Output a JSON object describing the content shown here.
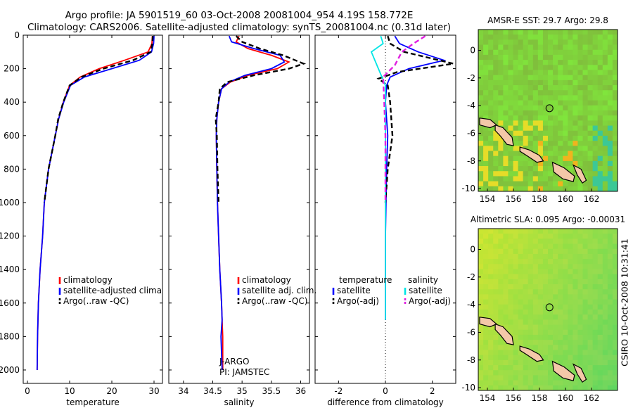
{
  "figure": {
    "title_line1": "Argo profile: JA 5901519_60 03-Oct-2008 20081004_954 4.19S 158.772E",
    "title_line2": "Climatology: CARS2006. Satellite-adjusted climatology: synTS_20081004.nc (0.31d later)",
    "side_label": "CSIRO 10-Oct-2008 10:31:41",
    "colors": {
      "climatology": "#ff0000",
      "satellite": "#0000ff",
      "argo": "#000000",
      "satellite_salinity": "#00e5e5",
      "argo_salinity": "#e020e0"
    }
  },
  "chart_data": [
    {
      "type": "line",
      "id": "temperature",
      "xlabel": "temperature",
      "xlim": [
        -1,
        32
      ],
      "ylim": [
        2080,
        0
      ],
      "xticks": [
        0,
        10,
        20,
        30
      ],
      "yticks": [
        0,
        200,
        400,
        600,
        800,
        1000,
        1200,
        1400,
        1600,
        1800,
        2000
      ],
      "legend": [
        "climatology",
        "satellite-adjusted climatology",
        "Argo(..raw -QC)"
      ],
      "series": [
        {
          "name": "climatology",
          "color": "#ff0000",
          "x": [
            29.6,
            29.5,
            28.6,
            23.0,
            17.0,
            12.5,
            10.0,
            8.5,
            7.4,
            6.6,
            5.8,
            5.0,
            4.5,
            4.0,
            3.6,
            3.0,
            2.6,
            2.4,
            2.3
          ],
          "y": [
            5,
            50,
            100,
            150,
            200,
            250,
            300,
            400,
            500,
            600,
            700,
            800,
            900,
            1000,
            1200,
            1400,
            1600,
            1800,
            2000
          ]
        },
        {
          "name": "satellite-adjusted climatology",
          "color": "#0000ff",
          "x": [
            30.0,
            29.9,
            29.4,
            26.5,
            20.0,
            13.5,
            10.2,
            8.6,
            7.4,
            6.6,
            5.8,
            5.0,
            4.5,
            4.0,
            3.6,
            3.0,
            2.6,
            2.4,
            2.3
          ],
          "y": [
            5,
            50,
            100,
            150,
            200,
            250,
            300,
            400,
            500,
            600,
            700,
            800,
            900,
            1000,
            1200,
            1400,
            1600,
            1800,
            2000
          ]
        },
        {
          "name": "Argo(..raw -QC)",
          "color": "#000000",
          "x": [
            29.7,
            29.6,
            29.2,
            25.0,
            18.0,
            12.8,
            10.0,
            8.5,
            7.3,
            6.6,
            5.8,
            5.0,
            4.5,
            4.0
          ],
          "y": [
            5,
            50,
            100,
            150,
            200,
            250,
            300,
            400,
            500,
            600,
            700,
            800,
            900,
            1000
          ]
        }
      ]
    },
    {
      "type": "line",
      "id": "salinity",
      "xlabel": "salinity",
      "xlim": [
        33.75,
        36.15
      ],
      "ylim": [
        2080,
        0
      ],
      "xticks": [
        34,
        34.5,
        35,
        35.5,
        36
      ],
      "legend": [
        "climatology",
        "satellite adj. clim.",
        "Argo(..raw -QC)"
      ],
      "annotations": [
        "J-ARGO",
        "PI: JAMSTEC"
      ],
      "series": [
        {
          "name": "climatology",
          "color": "#ff0000",
          "x": [
            34.95,
            34.9,
            35.1,
            35.5,
            35.8,
            35.6,
            35.1,
            34.8,
            34.65,
            34.6,
            34.57,
            34.56,
            34.57,
            34.58,
            34.6,
            34.62,
            34.65,
            34.66,
            34.67,
            34.67
          ],
          "y": [
            5,
            40,
            80,
            120,
            160,
            200,
            240,
            280,
            320,
            400,
            500,
            600,
            800,
            1000,
            1200,
            1400,
            1600,
            1700,
            1800,
            2000
          ]
        },
        {
          "name": "satellite adj. clim.",
          "color": "#0000ff",
          "x": [
            34.78,
            34.82,
            35.2,
            35.65,
            35.72,
            35.5,
            35.05,
            34.78,
            34.65,
            34.6,
            34.57,
            34.56,
            34.57,
            34.58,
            34.6,
            34.62,
            34.65,
            34.66,
            34.64,
            34.66
          ],
          "y": [
            5,
            40,
            80,
            120,
            160,
            200,
            240,
            280,
            320,
            400,
            500,
            600,
            800,
            1000,
            1200,
            1400,
            1600,
            1700,
            1800,
            2000
          ]
        },
        {
          "name": "Argo(..raw -QC)",
          "color": "#000000",
          "x": [
            34.9,
            35.0,
            35.3,
            35.7,
            36.05,
            35.8,
            35.2,
            34.75,
            34.62,
            34.6,
            34.55,
            34.57,
            34.58,
            34.6
          ],
          "y": [
            5,
            40,
            80,
            120,
            170,
            200,
            240,
            280,
            320,
            400,
            500,
            600,
            800,
            1000
          ]
        }
      ]
    },
    {
      "type": "line",
      "id": "difference",
      "xlabel": "difference from climatology",
      "xlim": [
        -3.0,
        3.0
      ],
      "ylim": [
        2080,
        0
      ],
      "xticks": [
        -2,
        0,
        2
      ],
      "legend_temperature_heading": "temperature",
      "legend_salinity_heading": "salinity",
      "legend": [
        "satellite",
        "Argo(-adj)",
        "satellite",
        "Argo(-adj)"
      ],
      "series": [
        {
          "name": "satellite",
          "color": "#0000ff",
          "x": [
            0.4,
            0.6,
            1.4,
            2.5,
            1.0,
            0.2,
            0.05,
            0.0,
            0.1,
            0.05,
            0.0,
            0.0,
            0.0
          ],
          "y": [
            5,
            50,
            100,
            150,
            200,
            250,
            300,
            400,
            600,
            800,
            1200,
            1600,
            1700
          ]
        },
        {
          "name": "Argo(-adj)",
          "color": "#000000",
          "x": [
            0.1,
            0.2,
            0.8,
            2.9,
            0.5,
            -0.3,
            0.1,
            0.2,
            0.3,
            0.1,
            0.0
          ],
          "y": [
            5,
            50,
            100,
            170,
            220,
            260,
            300,
            400,
            600,
            800,
            1000
          ]
        },
        {
          "name": "satellite",
          "color": "#00e5e5",
          "x": [
            -0.2,
            -0.1,
            -0.6,
            -0.3,
            0.0,
            0.0,
            0.0,
            0.0,
            0.0,
            0.0
          ],
          "y": [
            5,
            50,
            100,
            200,
            300,
            400,
            600,
            1000,
            1400,
            1700
          ]
        },
        {
          "name": "Argo(-adj)",
          "color": "#e020e0",
          "x": [
            1.7,
            1.2,
            0.7,
            0.4,
            -0.1,
            -0.05,
            0.0,
            0.0
          ],
          "y": [
            5,
            50,
            100,
            180,
            250,
            400,
            600,
            1000
          ]
        }
      ]
    },
    {
      "type": "heatmap",
      "id": "sst",
      "title": "AMSR-E SST: 29.7 Argo: 29.8",
      "xlim": [
        153.3,
        164.0
      ],
      "ylim": [
        -10.2,
        1.5
      ],
      "xticks": [
        154,
        156,
        158,
        160,
        162
      ],
      "yticks": [
        0,
        -2,
        -4,
        -6,
        -8,
        -10
      ],
      "marker": {
        "x": 158.772,
        "y": -4.19
      }
    },
    {
      "type": "heatmap",
      "id": "sla",
      "title": "Altimetric SLA: 0.095 Argo: -0.00031",
      "xlim": [
        153.3,
        164.0
      ],
      "ylim": [
        -10.2,
        1.5
      ],
      "xticks": [
        154,
        156,
        158,
        160,
        162
      ],
      "yticks": [
        0,
        -2,
        -4,
        -6,
        -8,
        -10
      ],
      "marker": {
        "x": 158.772,
        "y": -4.19
      }
    }
  ]
}
